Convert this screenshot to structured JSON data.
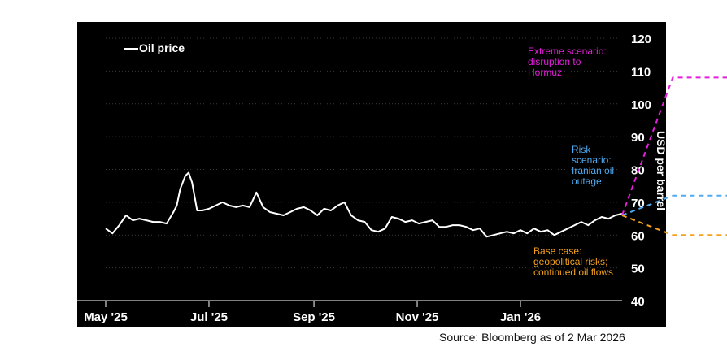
{
  "chart_data": {
    "type": "line",
    "ylabel": "USD per barrel",
    "ylim": [
      40,
      120
    ],
    "yticks": [
      40,
      50,
      60,
      70,
      80,
      90,
      100,
      110,
      120
    ],
    "xticks": [
      "May '25",
      "Jul '25",
      "Sep '25",
      "Nov '25",
      "Jan '26"
    ],
    "grid": true,
    "legend": {
      "placement": "top-left",
      "label": "Oil price"
    },
    "source": "Source: Bloomberg as of 2 Mar 2026",
    "colors": {
      "background": "#000000",
      "oil": "#ffffff",
      "extreme": "#e61edc",
      "risk": "#50aaf0",
      "base": "#f5a01e"
    },
    "series": [
      {
        "name": "Oil price",
        "x": [
          "2025-05-01",
          "2025-05-05",
          "2025-05-09",
          "2025-05-13",
          "2025-05-17",
          "2025-05-21",
          "2025-05-25",
          "2025-05-29",
          "2025-06-02",
          "2025-06-06",
          "2025-06-10",
          "2025-06-12",
          "2025-06-14",
          "2025-06-17",
          "2025-06-19",
          "2025-06-21",
          "2025-06-24",
          "2025-06-27",
          "2025-07-01",
          "2025-07-05",
          "2025-07-09",
          "2025-07-13",
          "2025-07-17",
          "2025-07-21",
          "2025-07-25",
          "2025-07-29",
          "2025-08-02",
          "2025-08-06",
          "2025-08-10",
          "2025-08-14",
          "2025-08-18",
          "2025-08-22",
          "2025-08-26",
          "2025-08-30",
          "2025-09-03",
          "2025-09-07",
          "2025-09-11",
          "2025-09-15",
          "2025-09-19",
          "2025-09-23",
          "2025-09-27",
          "2025-10-01",
          "2025-10-05",
          "2025-10-09",
          "2025-10-13",
          "2025-10-17",
          "2025-10-21",
          "2025-10-25",
          "2025-10-29",
          "2025-11-02",
          "2025-11-06",
          "2025-11-10",
          "2025-11-14",
          "2025-11-18",
          "2025-11-22",
          "2025-11-26",
          "2025-11-30",
          "2025-12-04",
          "2025-12-08",
          "2025-12-12",
          "2025-12-16",
          "2025-12-20",
          "2025-12-24",
          "2025-12-28",
          "2026-01-01",
          "2026-01-05",
          "2026-01-09",
          "2026-01-13",
          "2026-01-17",
          "2026-01-21",
          "2026-01-25",
          "2026-01-29",
          "2026-02-02",
          "2026-02-06",
          "2026-02-10",
          "2026-02-14",
          "2026-02-18",
          "2026-02-22",
          "2026-02-26",
          "2026-03-02"
        ],
        "y": [
          62,
          60.5,
          63,
          66,
          64.5,
          65,
          64.5,
          64,
          64,
          63.5,
          67,
          69,
          74,
          78,
          79,
          76,
          67.5,
          67.5,
          68,
          69,
          70,
          69,
          68.5,
          69,
          68.5,
          73,
          68.5,
          67,
          66.5,
          66,
          67,
          68,
          68.5,
          67.5,
          66,
          68,
          67.5,
          69,
          70,
          66,
          64.5,
          64,
          61.5,
          61,
          62,
          65.5,
          65,
          64,
          64.5,
          63.5,
          64,
          64.5,
          62.5,
          62.5,
          63,
          63,
          62.5,
          61.5,
          62,
          59.5,
          60,
          60.5,
          61,
          60.5,
          61.5,
          60.5,
          62,
          61,
          61.5,
          60,
          61,
          62,
          63,
          64,
          63,
          64.5,
          65.5,
          65,
          66,
          66.5
        ]
      },
      {
        "name": "Extreme scenario: disruption to Hormuz",
        "x": [
          "2026-03-02",
          "2026-04-01",
          "2026-07-31"
        ],
        "y": [
          66,
          108,
          108
        ]
      },
      {
        "name": "Risk scenario: Iranian oil outage",
        "x": [
          "2026-03-02",
          "2026-04-01",
          "2026-07-31"
        ],
        "y": [
          66,
          72,
          72
        ]
      },
      {
        "name": "Base case: geopolitical risks; continued oil flows",
        "x": [
          "2026-03-02",
          "2026-04-01",
          "2026-07-31"
        ],
        "y": [
          66,
          60,
          60
        ]
      }
    ],
    "annotations": [
      {
        "series": 1,
        "lines": [
          "Extreme scenario:",
          "disruption to",
          "Hormuz"
        ]
      },
      {
        "series": 2,
        "lines": [
          "Risk",
          "scenario:",
          "Iranian oil",
          "outage"
        ]
      },
      {
        "series": 3,
        "lines": [
          "Base case:",
          "geopolitical risks;",
          "continued oil flows"
        ]
      }
    ]
  }
}
